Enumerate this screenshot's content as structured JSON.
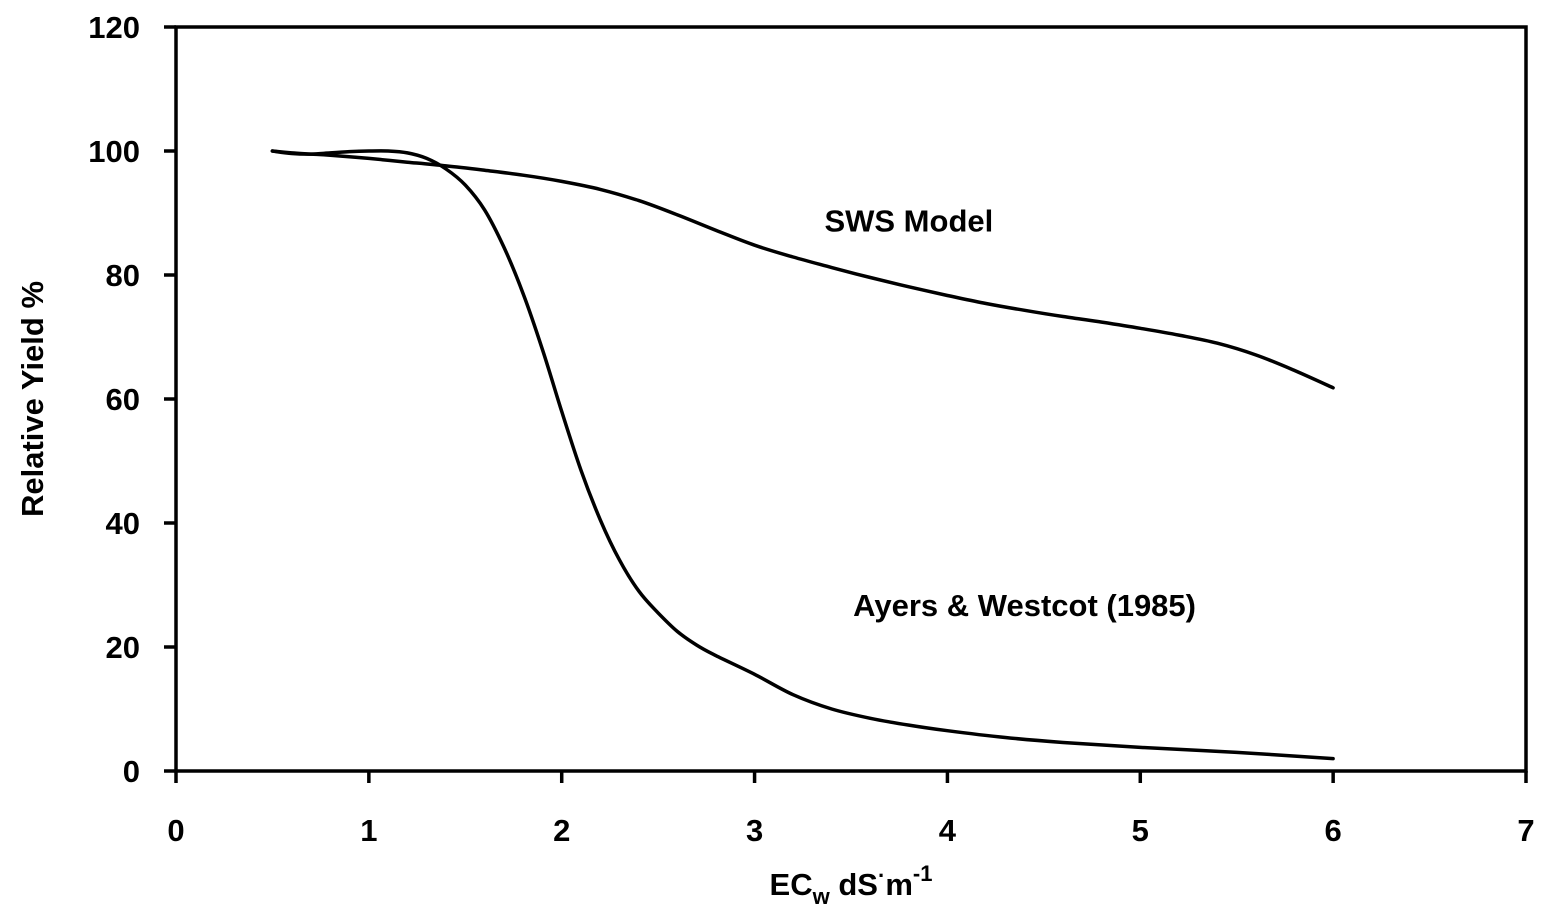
{
  "chart_data": {
    "type": "line",
    "xlabel": {
      "main": "EC",
      "sub": "w",
      "unit": " dS",
      "dot": "·",
      "unit2": "m",
      "sup": "-1"
    },
    "ylabel": "Relative Yield %",
    "xlim": [
      0,
      7
    ],
    "ylim": [
      0,
      120
    ],
    "xticks": [
      "0",
      "1",
      "2",
      "3",
      "4",
      "5",
      "6",
      "7"
    ],
    "yticks": [
      "0",
      "20",
      "40",
      "60",
      "80",
      "100",
      "120"
    ],
    "grid": false,
    "series": [
      {
        "name": "SWS Model",
        "x": [
          0.5,
          0.6,
          0.7,
          0.8,
          1.0,
          1.2,
          1.4,
          1.6,
          1.8,
          2.0,
          2.2,
          2.4,
          2.6,
          2.8,
          3.0,
          3.2,
          3.4,
          3.6,
          3.8,
          4.0,
          4.2,
          4.4,
          4.6,
          4.8,
          5.0,
          5.2,
          5.4,
          5.6,
          5.8,
          6.0
        ],
        "y": [
          100,
          99.7,
          99.5,
          99.3,
          98.8,
          98.2,
          97.6,
          96.9,
          96.1,
          95.1,
          93.8,
          92.0,
          89.7,
          87.2,
          84.8,
          82.9,
          81.2,
          79.6,
          78.1,
          76.7,
          75.4,
          74.3,
          73.3,
          72.4,
          71.4,
          70.3,
          69.0,
          67.1,
          64.6,
          61.8
        ]
      },
      {
        "name": "Ayers & Westcot (1985)",
        "x": [
          0.5,
          0.6,
          0.7,
          0.8,
          0.9,
          1.0,
          1.1,
          1.2,
          1.3,
          1.4,
          1.5,
          1.6,
          1.7,
          1.8,
          1.9,
          2.0,
          2.1,
          2.2,
          2.3,
          2.4,
          2.5,
          2.6,
          2.7,
          2.8,
          3.0,
          3.2,
          3.4,
          3.6,
          3.8,
          4.0,
          4.3,
          4.6,
          5.0,
          5.5,
          6.0
        ],
        "y": [
          100,
          99.6,
          99.5,
          99.7,
          99.9,
          100,
          100,
          99.7,
          98.8,
          97.1,
          94.5,
          90.5,
          84.5,
          77.0,
          68.0,
          58.0,
          48.5,
          40.5,
          34.0,
          29.0,
          25.5,
          22.5,
          20.3,
          18.6,
          15.6,
          12.3,
          10.0,
          8.5,
          7.4,
          6.5,
          5.4,
          4.6,
          3.8,
          3.0,
          2.0
        ]
      }
    ],
    "annotations": [
      {
        "text": "SWS Model",
        "x": 3.8,
        "y": 87
      },
      {
        "text": "Ayers & Westcot (1985)",
        "x": 4.4,
        "y": 25
      }
    ]
  }
}
